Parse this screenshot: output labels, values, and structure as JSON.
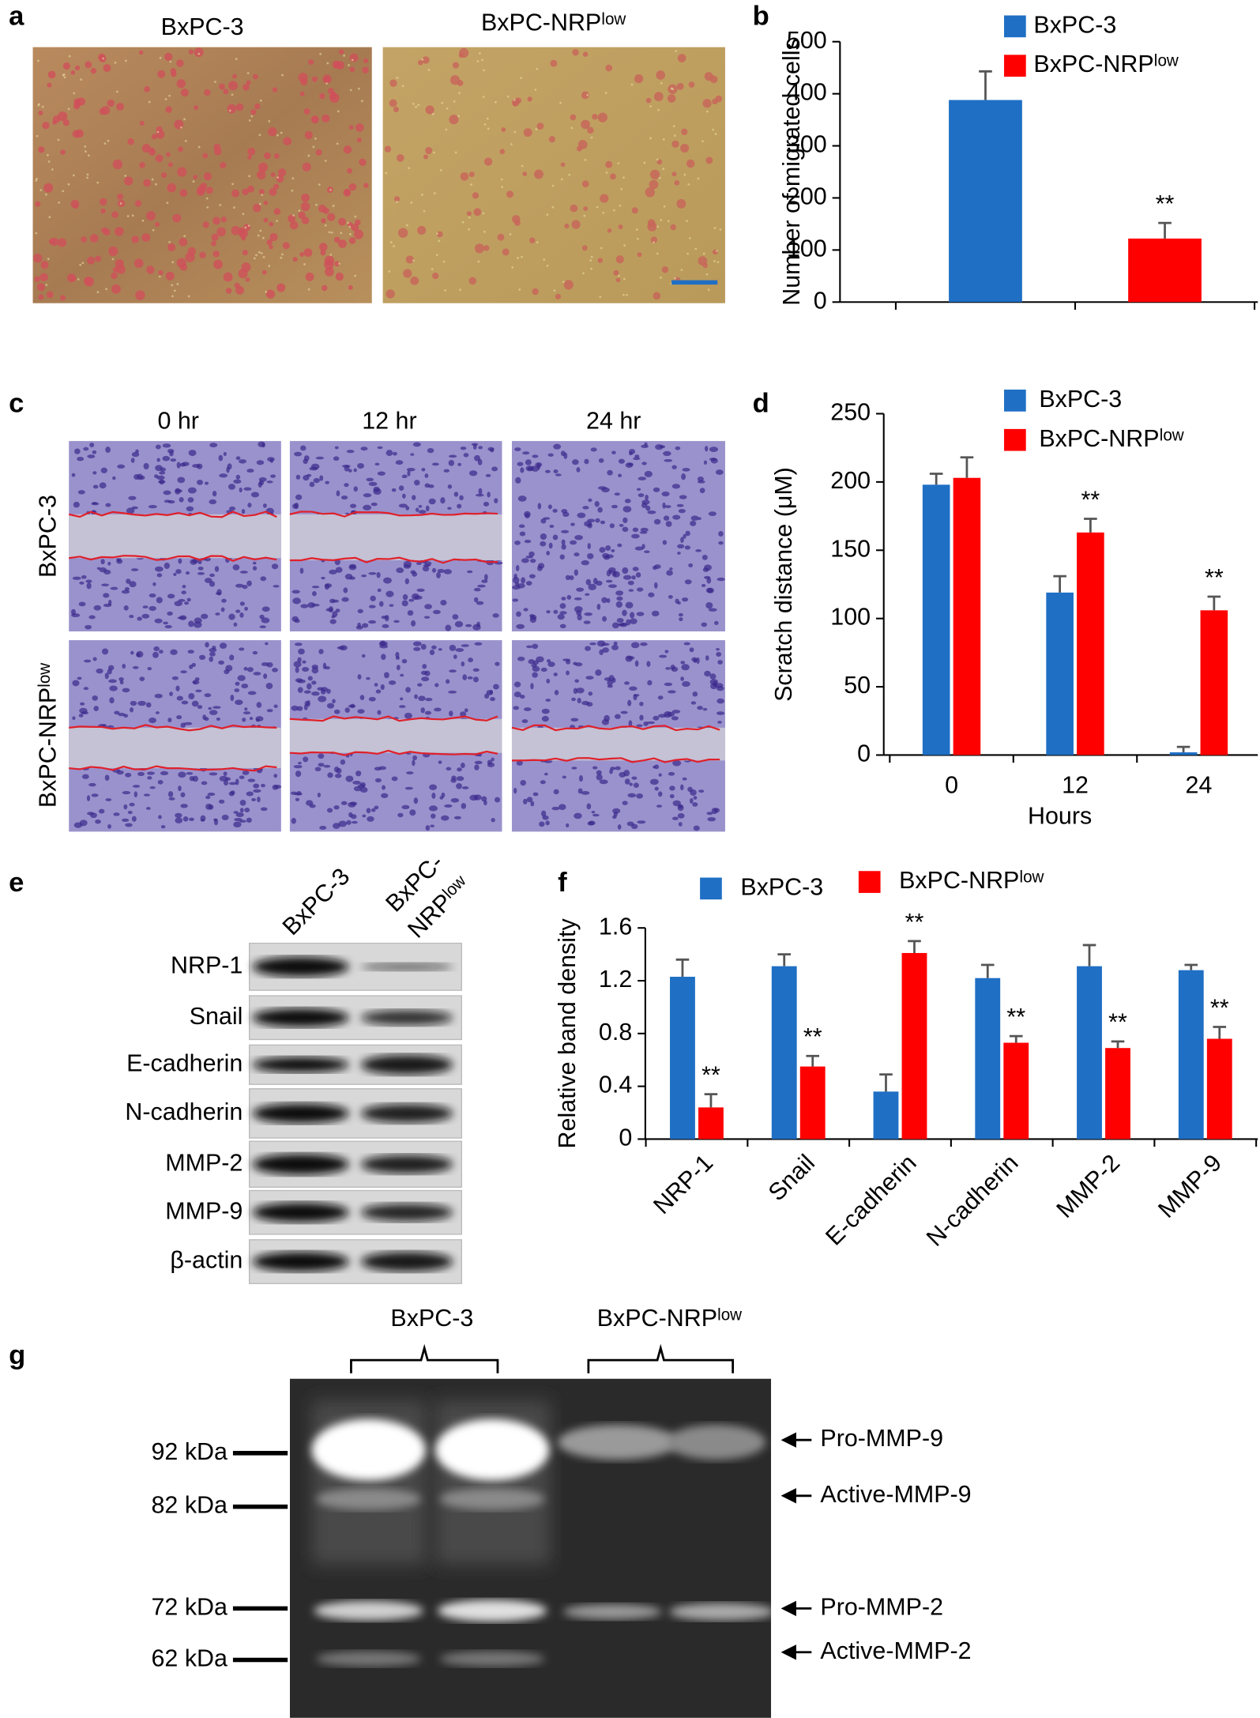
{
  "chart_data": [
    {
      "type": "bar",
      "panel_label": "b",
      "ylabel": "Number of migrated cells",
      "categories": [
        null,
        null
      ],
      "series": [
        {
          "name": "BxPC-3",
          "color": "#1f6fc5",
          "values": [
            388,
            null
          ],
          "errors": [
            55,
            null
          ],
          "annotations": [
            null,
            null
          ]
        },
        {
          "name": "BxPC-NRPˡᵒʷ",
          "color": "#ff0000",
          "values": [
            null,
            122
          ],
          "errors": [
            null,
            30
          ],
          "annotations": [
            null,
            "**"
          ]
        }
      ],
      "ylim": [
        0,
        500
      ],
      "yticks": [
        0,
        100,
        200,
        300,
        400,
        500
      ],
      "grid": false
    },
    {
      "type": "bar",
      "panel_label": "d",
      "ylabel": "Scratch distance  (μM)",
      "xlabel": "Hours",
      "categories": [
        "0",
        "12",
        "24"
      ],
      "series": [
        {
          "name": "BxPC-3",
          "color": "#1f6fc5",
          "values": [
            198,
            119,
            2
          ],
          "errors": [
            8,
            12,
            4
          ],
          "annotations": [
            null,
            null,
            null
          ]
        },
        {
          "name": "BxPC-NRPˡᵒʷ",
          "color": "#ff0000",
          "values": [
            203,
            163,
            106
          ],
          "errors": [
            15,
            10,
            10
          ],
          "annotations": [
            null,
            "**",
            "**"
          ]
        }
      ],
      "ylim": [
        0,
        250
      ],
      "yticks": [
        0,
        50,
        100,
        150,
        200,
        250
      ],
      "grid": false
    },
    {
      "type": "bar",
      "panel_label": "f",
      "ylabel": "Relative band density",
      "categories": [
        "NRP-1",
        "Snail",
        "E-cadherin",
        "N-cadherin",
        "MMP-2",
        "MMP-9"
      ],
      "series": [
        {
          "name": "BxPC-3",
          "color": "#1f6fc5",
          "values": [
            1.23,
            1.31,
            0.36,
            1.22,
            1.31,
            1.28
          ],
          "errors": [
            0.13,
            0.09,
            0.13,
            0.1,
            0.16,
            0.04
          ],
          "annotations": [
            null,
            null,
            null,
            null,
            null,
            null
          ]
        },
        {
          "name": "BxPC-NRPˡᵒʷ",
          "color": "#ff0000",
          "values": [
            0.24,
            0.55,
            1.41,
            0.73,
            0.69,
            0.76
          ],
          "errors": [
            0.1,
            0.08,
            0.09,
            0.05,
            0.05,
            0.09
          ],
          "annotations": [
            "**",
            "**",
            "**",
            "**",
            "**",
            "**"
          ]
        }
      ],
      "ylim": [
        0,
        1.6
      ],
      "yticks": [
        0,
        0.4,
        0.8,
        1.2,
        1.6
      ],
      "grid": false
    }
  ],
  "panel_a": {
    "label": "a",
    "images": [
      "BxPC-3",
      "BxPC-NRPˡᵒʷ"
    ]
  },
  "panel_c": {
    "label": "c",
    "columns": [
      "0 hr",
      "12 hr",
      "24 hr"
    ],
    "rows": [
      "BxPC-3",
      "BxPC-NRPˡᵒʷ"
    ]
  },
  "panel_e": {
    "label": "e",
    "lanes": [
      {
        "lines": [
          "BxPC-3"
        ]
      },
      {
        "lines": [
          "BxPC-",
          "NRPˡᵒʷ"
        ]
      }
    ],
    "rows": [
      "NRP-1",
      "Snail",
      "E-cadherin",
      "N-cadherin",
      "MMP-2",
      "MMP-9",
      "β-actin"
    ]
  },
  "panel_g": {
    "label": "g",
    "groups": [
      "BxPC-3",
      "BxPC-NRPˡᵒʷ"
    ],
    "markers": [
      "92 kDa",
      "82 kDa",
      "72 kDa",
      "62 kDa"
    ],
    "bands": [
      "Pro-MMP-9",
      "Active-MMP-9",
      "Pro-MMP-2",
      "Active-MMP-2"
    ]
  }
}
